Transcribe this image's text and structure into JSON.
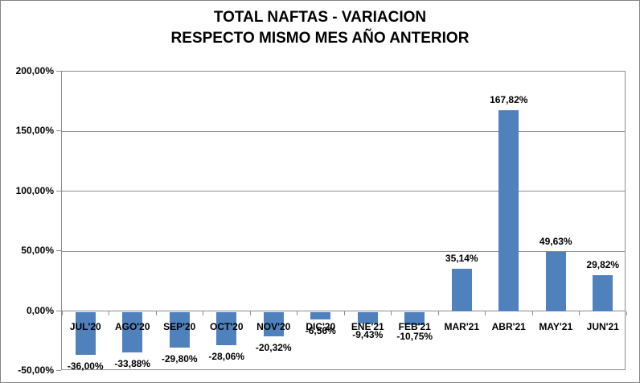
{
  "chart": {
    "title_line1": "TOTAL NAFTAS - VARIACION",
    "title_line2": "RESPECTO MISMO MES AÑO ANTERIOR"
  },
  "chart_data": {
    "type": "bar",
    "title": "TOTAL NAFTAS - VARIACION RESPECTO MISMO MES AÑO ANTERIOR",
    "categories": [
      "JUL'20",
      "AGO'20",
      "SEP'20",
      "OCT'20",
      "NOV'20",
      "DIC'20",
      "ENE'21",
      "FEB'21",
      "MAR'21",
      "ABR'21",
      "MAY'21",
      "JUN'21"
    ],
    "values": [
      -36.0,
      -33.88,
      -29.8,
      -28.06,
      -20.32,
      -6.56,
      -9.43,
      -10.75,
      35.14,
      167.82,
      49.63,
      29.82
    ],
    "value_labels": [
      "-36,00%",
      "-33,88%",
      "-29,80%",
      "-28,06%",
      "-20,32%",
      "-6,56%",
      "-9,43%",
      "-10,75%",
      "35,14%",
      "167,82%",
      "49,63%",
      "29,82%"
    ],
    "y_tick_labels": [
      "200,00%",
      "150,00%",
      "100,00%",
      "50,00%",
      "0,00%",
      "-50,00%"
    ],
    "y_tick_values": [
      200,
      150,
      100,
      50,
      0,
      -50
    ],
    "ylim": [
      -50,
      200
    ],
    "xlabel": "",
    "ylabel": "",
    "grid": true,
    "legend": "none",
    "bar_color": "#4F81BD",
    "gridline_color": "#8C8C8C",
    "axis_color": "#8C8C8C",
    "text_color": "#000000",
    "background_color": "#FFFFFF"
  }
}
